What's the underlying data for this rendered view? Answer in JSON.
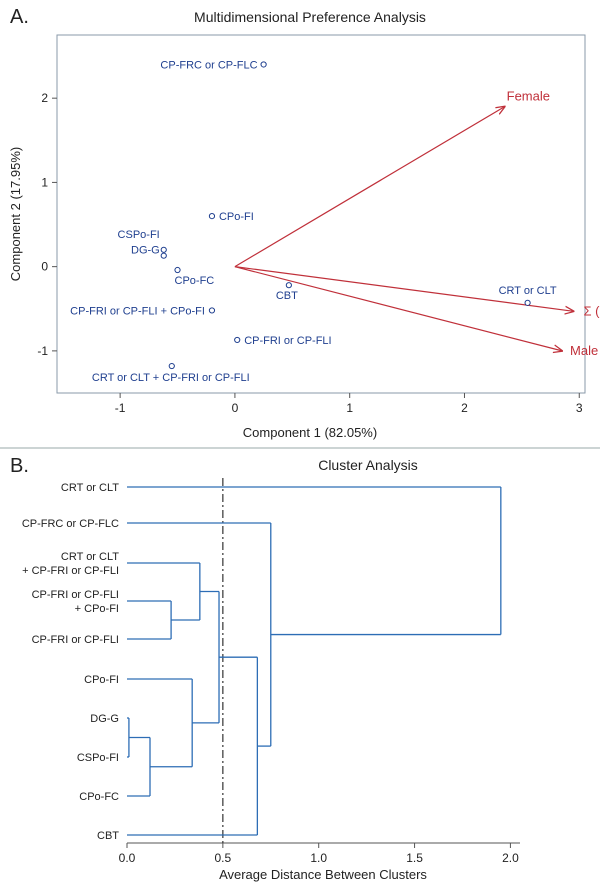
{
  "panel_a_letter": "A.",
  "panel_b_letter": "B.",
  "chart_data": [
    {
      "type": "scatter",
      "title": "Multidimensional Preference Analysis",
      "xlabel": "Component 1 (82.05%)",
      "ylabel": "Component 2 (17.95%)",
      "xlim": [
        -1.55,
        3.05
      ],
      "ylim": [
        -1.5,
        2.75
      ],
      "xticks": [
        -1,
        0,
        1,
        2,
        3
      ],
      "yticks": [
        -1,
        0,
        1,
        2
      ],
      "point_color": "#1f3f8f",
      "vector_color": "#c0303a",
      "points": [
        {
          "label": "CP-FRC or CP-FLC",
          "x": 0.25,
          "y": 2.4
        },
        {
          "label": "CPo-FI",
          "x": -0.2,
          "y": 0.6
        },
        {
          "label": "CSPo-FI",
          "x": -0.62,
          "y": 0.2
        },
        {
          "label": "DG-G",
          "x": -0.62,
          "y": 0.13
        },
        {
          "label": "CPo-FC",
          "x": -0.5,
          "y": -0.04
        },
        {
          "label": "CBT",
          "x": 0.47,
          "y": -0.22
        },
        {
          "label": "CRT or CLT",
          "x": 2.55,
          "y": -0.43
        },
        {
          "label": "CP-FRI or CP-FLI + CPo-FI",
          "x": -0.2,
          "y": -0.52
        },
        {
          "label": "CP-FRI or CP-FLI",
          "x": 0.02,
          "y": -0.87
        },
        {
          "label": "CRT or CLT + CP-FRI or CP-FLI",
          "x": -0.55,
          "y": -1.18
        }
      ],
      "vectors": [
        {
          "label": "Female",
          "x": 2.35,
          "y": 1.9
        },
        {
          "label": "Σ (gender)",
          "x": 2.95,
          "y": -0.53
        },
        {
          "label": "Male",
          "x": 2.85,
          "y": -1.0
        }
      ]
    },
    {
      "type": "dendrogram",
      "title": "Cluster Analysis",
      "xlabel": "Average Distance Between Clusters",
      "xlim": [
        0,
        2.05
      ],
      "xticks": [
        "0.0",
        "0.5",
        "1.0",
        "1.5",
        "2.0"
      ],
      "cutoff": 0.5,
      "line_color": "#2d6db5",
      "leaves": [
        {
          "id": "crt",
          "lines": [
            "CRT or CLT"
          ]
        },
        {
          "id": "frc",
          "lines": [
            "CP-FRC or CP-FLC"
          ]
        },
        {
          "id": "crtfri",
          "lines": [
            "CRT or CLT",
            "+ CP-FRI or CP-FLI"
          ]
        },
        {
          "id": "frifi",
          "lines": [
            "CP-FRI or CP-FLI",
            "+ CPo-FI"
          ]
        },
        {
          "id": "fri",
          "lines": [
            "CP-FRI or CP-FLI"
          ]
        },
        {
          "id": "cpofi",
          "lines": [
            "CPo-FI"
          ]
        },
        {
          "id": "dgg",
          "lines": [
            "DG-G"
          ]
        },
        {
          "id": "cspofi",
          "lines": [
            "CSPo-FI"
          ]
        },
        {
          "id": "cpofc",
          "lines": [
            "CPo-FC"
          ]
        },
        {
          "id": "cbt",
          "lines": [
            "CBT"
          ]
        }
      ],
      "merges": [
        {
          "id": "m1",
          "a": "dgg",
          "b": "cspofi",
          "height": 0.01
        },
        {
          "id": "m2",
          "a": "m1",
          "b": "cpofc",
          "height": 0.12
        },
        {
          "id": "m3",
          "a": "frifi",
          "b": "fri",
          "height": 0.23
        },
        {
          "id": "m4",
          "a": "cpofi",
          "b": "m2",
          "height": 0.34
        },
        {
          "id": "m5",
          "a": "crtfri",
          "b": "m3",
          "height": 0.38
        },
        {
          "id": "m6",
          "a": "m5",
          "b": "m4",
          "height": 0.48
        },
        {
          "id": "m7",
          "a": "m6",
          "b": "cbt",
          "height": 0.68
        },
        {
          "id": "m8",
          "a": "frc",
          "b": "m7",
          "height": 0.75
        },
        {
          "id": "m9",
          "a": "crt",
          "b": "m8",
          "height": 1.95
        }
      ]
    }
  ]
}
